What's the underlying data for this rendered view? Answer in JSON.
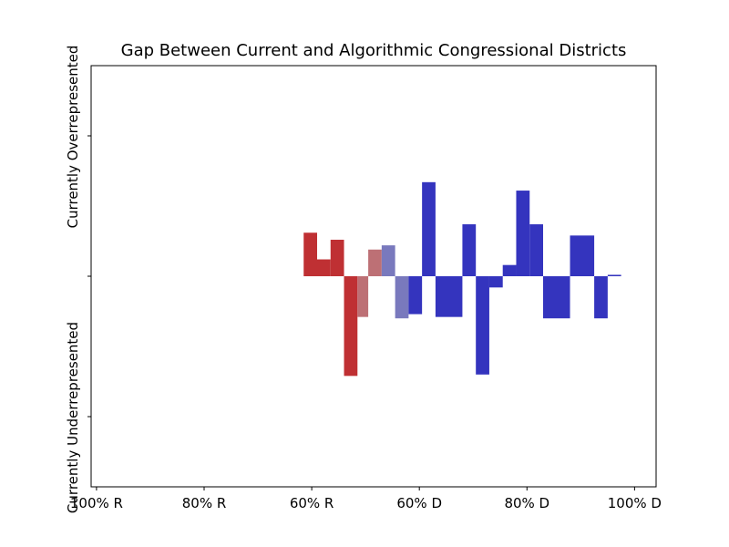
{
  "chart_data": {
    "type": "bar",
    "title": "Gap Between Current and Algorithmic Congressional Districts",
    "ylabel_top": "Currently Overrepresented",
    "ylabel_bottom": "Currently Underrepresented",
    "x_ticks": [
      {
        "value": 0,
        "label": "100% R"
      },
      {
        "value": 20,
        "label": "80% R"
      },
      {
        "value": 40,
        "label": "60% R"
      },
      {
        "value": 60,
        "label": "60% D"
      },
      {
        "value": 80,
        "label": "80% D"
      },
      {
        "value": 100,
        "label": "100% D"
      }
    ],
    "xlim": [
      -1,
      104
    ],
    "ylim": [
      -1.5,
      1.5
    ],
    "y_ticks": [
      -1,
      0,
      1
    ],
    "grid": false,
    "colors": {
      "strong_r": "#bf3033",
      "light_r": "#bd7075",
      "light_d": "#7979bd",
      "strong_d": "#3434be"
    },
    "bars": [
      {
        "x0": 38.5,
        "x1": 41.0,
        "value": 0.31,
        "color": "strong_r"
      },
      {
        "x0": 41.0,
        "x1": 43.5,
        "value": 0.12,
        "color": "strong_r"
      },
      {
        "x0": 43.5,
        "x1": 46.0,
        "value": 0.26,
        "color": "strong_r"
      },
      {
        "x0": 46.0,
        "x1": 48.5,
        "value": -0.71,
        "color": "strong_r"
      },
      {
        "x0": 48.5,
        "x1": 50.5,
        "value": -0.29,
        "color": "light_r"
      },
      {
        "x0": 50.5,
        "x1": 53.0,
        "value": 0.19,
        "color": "light_r"
      },
      {
        "x0": 53.0,
        "x1": 55.5,
        "value": 0.22,
        "color": "light_d"
      },
      {
        "x0": 55.5,
        "x1": 58.0,
        "value": -0.3,
        "color": "light_d"
      },
      {
        "x0": 58.0,
        "x1": 60.5,
        "value": -0.27,
        "color": "strong_d"
      },
      {
        "x0": 60.5,
        "x1": 63.0,
        "value": 0.67,
        "color": "strong_d"
      },
      {
        "x0": 63.0,
        "x1": 68.0,
        "value": -0.29,
        "color": "strong_d"
      },
      {
        "x0": 68.0,
        "x1": 70.5,
        "value": 0.37,
        "color": "strong_d"
      },
      {
        "x0": 70.5,
        "x1": 73.0,
        "value": -0.7,
        "color": "strong_d"
      },
      {
        "x0": 73.0,
        "x1": 75.5,
        "value": -0.08,
        "color": "strong_d"
      },
      {
        "x0": 75.5,
        "x1": 78.0,
        "value": 0.08,
        "color": "strong_d"
      },
      {
        "x0": 78.0,
        "x1": 80.5,
        "value": 0.61,
        "color": "strong_d"
      },
      {
        "x0": 80.5,
        "x1": 83.0,
        "value": 0.37,
        "color": "strong_d"
      },
      {
        "x0": 83.0,
        "x1": 88.0,
        "value": -0.3,
        "color": "strong_d"
      },
      {
        "x0": 88.0,
        "x1": 92.5,
        "value": 0.29,
        "color": "strong_d"
      },
      {
        "x0": 92.5,
        "x1": 95.0,
        "value": -0.3,
        "color": "strong_d"
      },
      {
        "x0": 95.0,
        "x1": 97.5,
        "value": 0.01,
        "color": "strong_d"
      }
    ]
  }
}
